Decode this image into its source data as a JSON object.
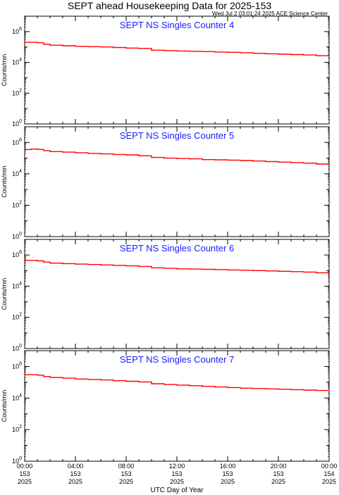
{
  "header": {
    "title": "SEPT ahead Housekeeping Data for 2025-153",
    "timestamp": "Wed Jul  2 03:01:24 2025 ACE Science Center"
  },
  "colors": {
    "series": "#ff0000",
    "panel_title": "#1a1aff",
    "axis": "#000000"
  },
  "chart_data": [
    {
      "type": "line",
      "title": "SEPT NS Singles Counter 4",
      "ylabel": "Counts/min",
      "yscale": "log",
      "ylim": [
        1,
        10000000
      ],
      "yticks": [
        "10^0",
        "10^2",
        "10^4",
        "10^6"
      ],
      "xlim": [
        0,
        24
      ],
      "xlabel": "UTC Day of Year",
      "series": [
        {
          "x": [
            0,
            0.5,
            1.0,
            1.5,
            2.0,
            3.0,
            4.0,
            5.0,
            6.0,
            7.0,
            8.0,
            9.0,
            10.0,
            11.0,
            12.0,
            13.0,
            14.0,
            15.0,
            16.0,
            17.0,
            18.0,
            19.0,
            20.0,
            21.0,
            22.0,
            23.0,
            24.0
          ],
          "y": [
            200000,
            200000,
            190000,
            150000,
            130000,
            120000,
            110000,
            105000,
            100000,
            92000,
            85000,
            80000,
            62000,
            58000,
            55000,
            52000,
            50000,
            47000,
            45000,
            42000,
            39000,
            36000,
            34000,
            32000,
            30000,
            27000,
            25000
          ]
        }
      ]
    },
    {
      "type": "line",
      "title": "SEPT NS Singles Counter 5",
      "ylabel": "Counts/min",
      "yscale": "log",
      "ylim": [
        1,
        10000000
      ],
      "yticks": [
        "10^0",
        "10^2",
        "10^4",
        "10^6"
      ],
      "xlim": [
        0,
        24
      ],
      "xlabel": "UTC Day of Year",
      "series": [
        {
          "x": [
            0,
            0.5,
            1.0,
            1.5,
            2.0,
            3.0,
            4.0,
            5.0,
            6.0,
            7.0,
            8.0,
            9.0,
            10.0,
            11.0,
            12.0,
            13.0,
            14.0,
            15.0,
            16.0,
            17.0,
            18.0,
            19.0,
            20.0,
            21.0,
            22.0,
            23.0,
            24.0
          ],
          "y": [
            350000,
            380000,
            360000,
            300000,
            260000,
            240000,
            220000,
            200000,
            185000,
            170000,
            160000,
            140000,
            110000,
            100000,
            95000,
            90000,
            80000,
            78000,
            75000,
            70000,
            65000,
            60000,
            56000,
            52000,
            48000,
            42000,
            38000
          ]
        }
      ]
    },
    {
      "type": "line",
      "title": "SEPT NS Singles Counter 6",
      "ylabel": "Counts/min",
      "yscale": "log",
      "ylim": [
        1,
        10000000
      ],
      "yticks": [
        "10^0",
        "10^2",
        "10^4",
        "10^6"
      ],
      "xlim": [
        0,
        24
      ],
      "xlabel": "UTC Day of Year",
      "series": [
        {
          "x": [
            0,
            0.5,
            1.0,
            1.5,
            2.0,
            3.0,
            4.0,
            5.0,
            6.0,
            7.0,
            8.0,
            9.0,
            10.0,
            11.0,
            12.0,
            13.0,
            14.0,
            15.0,
            16.0,
            17.0,
            18.0,
            19.0,
            20.0,
            21.0,
            22.0,
            23.0,
            24.0
          ],
          "y": [
            450000,
            450000,
            420000,
            350000,
            300000,
            280000,
            260000,
            245000,
            230000,
            215000,
            200000,
            185000,
            150000,
            140000,
            130000,
            125000,
            120000,
            115000,
            110000,
            105000,
            100000,
            95000,
            90000,
            85000,
            80000,
            72000,
            62000
          ]
        }
      ]
    },
    {
      "type": "line",
      "title": "SEPT NS Singles Counter 7",
      "ylabel": "Counts/min",
      "yscale": "log",
      "ylim": [
        1,
        10000000
      ],
      "yticks": [
        "10^0",
        "10^2",
        "10^4",
        "10^6"
      ],
      "xlim": [
        0,
        24
      ],
      "xlabel": "UTC Day of Year",
      "xticks": [
        {
          "time": "00:00",
          "day": "153",
          "year": "2025"
        },
        {
          "time": "04:00",
          "day": "153",
          "year": "2025"
        },
        {
          "time": "08:00",
          "day": "153",
          "year": "2025"
        },
        {
          "time": "12:00",
          "day": "153",
          "year": "2025"
        },
        {
          "time": "16:00",
          "day": "153",
          "year": "2025"
        },
        {
          "time": "20:00",
          "day": "153",
          "year": "2025"
        },
        {
          "time": "00:00",
          "day": "154",
          "year": "2025"
        }
      ],
      "series": [
        {
          "x": [
            0,
            0.5,
            1.0,
            1.5,
            2.0,
            3.0,
            4.0,
            5.0,
            6.0,
            7.0,
            8.0,
            9.0,
            10.0,
            11.0,
            12.0,
            13.0,
            14.0,
            15.0,
            16.0,
            17.0,
            18.0,
            19.0,
            20.0,
            21.0,
            22.0,
            23.0,
            24.0
          ],
          "y": [
            300000,
            300000,
            280000,
            230000,
            200000,
            180000,
            160000,
            150000,
            140000,
            125000,
            115000,
            105000,
            80000,
            72000,
            66000,
            60000,
            55000,
            50000,
            46000,
            42000,
            40000,
            38000,
            36000,
            34000,
            32000,
            30000,
            28000
          ]
        }
      ]
    }
  ]
}
